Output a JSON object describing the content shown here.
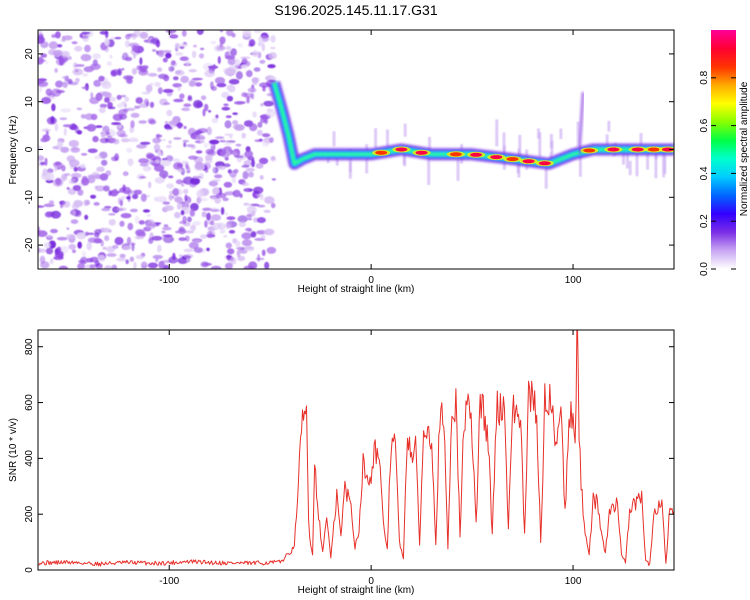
{
  "figure_title": "S196.2025.145.11.17.G31",
  "chart_data": [
    {
      "type": "heatmap",
      "xlabel": "Height of straight line (km)",
      "ylabel": "Frequency (Hz)",
      "xlim": [
        -165,
        150
      ],
      "ylim": [
        -25,
        25
      ],
      "xticks": [
        -100,
        0,
        100
      ],
      "yticks": [
        -20,
        -10,
        0,
        10,
        20
      ],
      "colorbar": {
        "label": "Normalized spectral amplitude",
        "range": [
          0,
          1
        ],
        "ticks": [
          "0.0",
          "0.2",
          "0.4",
          "0.6",
          "0.8"
        ],
        "colors": [
          "#ffffff",
          "#c9a6f2",
          "#7a2ee6",
          "#3300ff",
          "#0066ff",
          "#00ccff",
          "#00ffcc",
          "#00ff44",
          "#88ff00",
          "#ffff00",
          "#ffaa00",
          "#ff3300",
          "#ff0033",
          "#ff0099"
        ]
      },
      "features": {
        "noise_region_x": [
          -165,
          -48
        ],
        "trace": [
          {
            "x": -48,
            "y": 14
          },
          {
            "x": -44,
            "y": 8
          },
          {
            "x": -41,
            "y": 3
          },
          {
            "x": -38,
            "y": -3
          },
          {
            "x": -34,
            "y": -2
          },
          {
            "x": -28,
            "y": -1
          },
          {
            "x": -15,
            "y": -1
          },
          {
            "x": 0,
            "y": -1
          },
          {
            "x": 15,
            "y": 0
          },
          {
            "x": 30,
            "y": -1
          },
          {
            "x": 50,
            "y": -1
          },
          {
            "x": 70,
            "y": -2
          },
          {
            "x": 88,
            "y": -3
          },
          {
            "x": 100,
            "y": -1
          },
          {
            "x": 110,
            "y": 0
          },
          {
            "x": 130,
            "y": 0
          },
          {
            "x": 150,
            "y": 0
          }
        ]
      }
    },
    {
      "type": "line",
      "xlabel": "Height of straight line (km)",
      "ylabel": "SNR (10 * v/v)",
      "xlim": [
        -165,
        150
      ],
      "ylim": [
        0,
        860
      ],
      "xticks": [
        -100,
        0,
        100
      ],
      "yticks": [
        0,
        200,
        400,
        600,
        800
      ],
      "color": "#e8302a",
      "series": [
        {
          "x": [
            -165,
            -150,
            -135,
            -120,
            -105,
            -90,
            -75,
            -60,
            -45,
            -38,
            -36,
            -34,
            -32,
            -31,
            -30,
            -29,
            -28,
            -26,
            -24,
            -22,
            -20,
            -17,
            -15,
            -13,
            -10,
            -8,
            -6,
            -4,
            -2,
            0,
            2,
            4,
            6,
            8,
            10,
            12,
            14,
            16,
            18,
            20,
            22,
            24,
            26,
            28,
            30,
            32,
            34,
            36,
            38,
            40,
            42,
            44,
            46,
            48,
            50,
            52,
            54,
            56,
            58,
            60,
            62,
            64,
            66,
            68,
            70,
            72,
            74,
            76,
            78,
            80,
            82,
            84,
            86,
            88,
            90,
            92,
            94,
            96,
            98,
            100,
            101,
            102,
            103,
            104,
            106,
            108,
            110,
            112,
            114,
            116,
            118,
            120,
            122,
            124,
            126,
            128,
            130,
            132,
            134,
            136,
            138,
            140,
            142,
            144,
            146,
            148,
            150
          ],
          "values": [
            25,
            28,
            22,
            27,
            24,
            30,
            26,
            24,
            28,
            80,
            330,
            520,
            570,
            180,
            90,
            60,
            380,
            200,
            60,
            200,
            40,
            270,
            120,
            300,
            230,
            80,
            150,
            380,
            330,
            350,
            440,
            400,
            160,
            80,
            480,
            450,
            100,
            40,
            500,
            420,
            430,
            100,
            480,
            530,
            480,
            100,
            560,
            520,
            80,
            580,
            600,
            120,
            540,
            580,
            490,
            160,
            600,
            560,
            460,
            120,
            570,
            590,
            570,
            160,
            560,
            580,
            520,
            120,
            610,
            630,
            560,
            100,
            600,
            620,
            540,
            470,
            600,
            200,
            540,
            580,
            450,
            860,
            500,
            300,
            140,
            60,
            250,
            240,
            140,
            60,
            200,
            230,
            240,
            60,
            30,
            210,
            230,
            250,
            260,
            30,
            20,
            190,
            230,
            250,
            20,
            230,
            210
          ]
        }
      ]
    }
  ]
}
